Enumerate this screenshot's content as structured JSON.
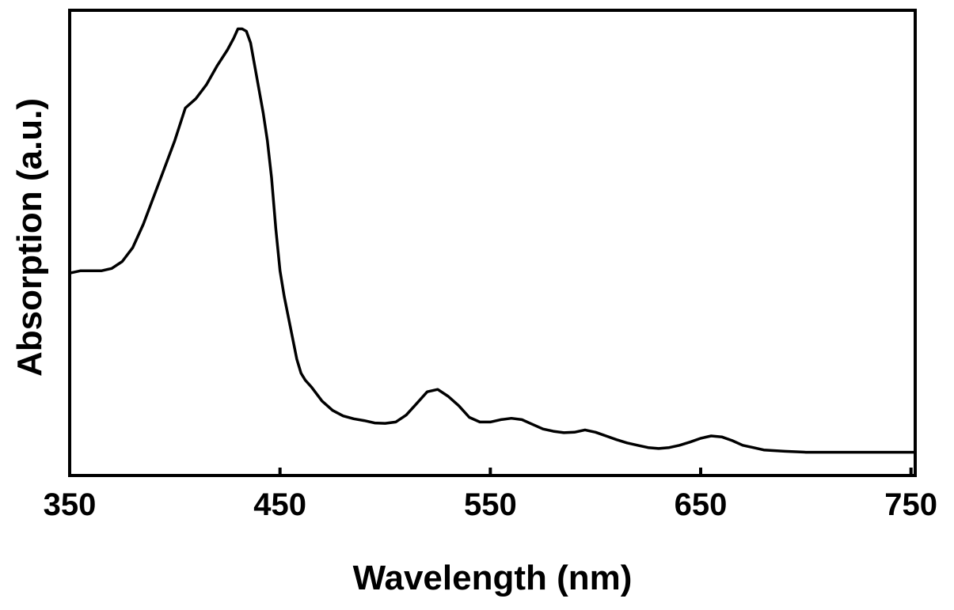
{
  "chart_data": {
    "type": "line",
    "title": "",
    "xlabel": "Wavelength (nm)",
    "ylabel": "Absorption (a.u.)",
    "xlim": [
      350,
      752
    ],
    "ylim": [
      0,
      1.0
    ],
    "x_ticks": [
      350,
      450,
      550,
      650,
      750
    ],
    "x_tick_labels": [
      "350",
      "450",
      "550",
      "650",
      "750"
    ],
    "y_ticks": [],
    "grid": false,
    "legend": "none",
    "line_color": "#000000",
    "series": [
      {
        "x": [
          350,
          355,
          360,
          365,
          370,
          375,
          380,
          385,
          390,
          395,
          400,
          405,
          410,
          415,
          420,
          425,
          428,
          430,
          432,
          434,
          436,
          438,
          440,
          442,
          444,
          446,
          448,
          450,
          452,
          454,
          456,
          458,
          460,
          462,
          465,
          470,
          475,
          480,
          485,
          490,
          495,
          500,
          505,
          510,
          515,
          520,
          525,
          530,
          535,
          540,
          545,
          550,
          555,
          560,
          565,
          570,
          575,
          580,
          585,
          590,
          595,
          600,
          605,
          610,
          615,
          620,
          625,
          630,
          635,
          640,
          645,
          650,
          655,
          660,
          665,
          670,
          675,
          680,
          690,
          700,
          710,
          720,
          730,
          740,
          752
        ],
        "y": [
          0.435,
          0.44,
          0.44,
          0.44,
          0.445,
          0.46,
          0.49,
          0.54,
          0.6,
          0.66,
          0.72,
          0.79,
          0.81,
          0.84,
          0.88,
          0.915,
          0.94,
          0.96,
          0.96,
          0.955,
          0.93,
          0.88,
          0.83,
          0.78,
          0.72,
          0.64,
          0.53,
          0.44,
          0.385,
          0.34,
          0.295,
          0.25,
          0.22,
          0.205,
          0.19,
          0.16,
          0.14,
          0.128,
          0.122,
          0.118,
          0.113,
          0.112,
          0.115,
          0.13,
          0.155,
          0.18,
          0.185,
          0.17,
          0.15,
          0.125,
          0.115,
          0.115,
          0.12,
          0.123,
          0.12,
          0.11,
          0.1,
          0.095,
          0.092,
          0.093,
          0.098,
          0.093,
          0.085,
          0.077,
          0.07,
          0.065,
          0.06,
          0.058,
          0.06,
          0.065,
          0.072,
          0.08,
          0.085,
          0.083,
          0.075,
          0.065,
          0.06,
          0.055,
          0.052,
          0.05,
          0.05,
          0.05,
          0.05,
          0.05,
          0.05
        ]
      }
    ]
  }
}
